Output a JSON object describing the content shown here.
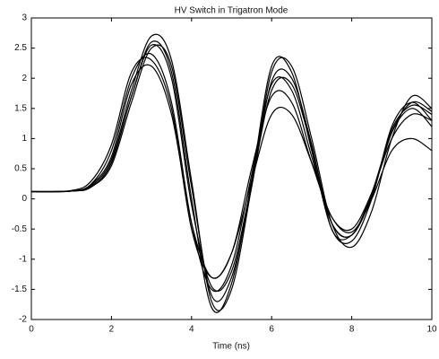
{
  "chart_data": {
    "type": "line",
    "title": "HV Switch in Trigatron Mode",
    "xlabel": "Time (ns)",
    "x": [
      0,
      1,
      1.5,
      2,
      2.5,
      3,
      3.5,
      4,
      4.5,
      5,
      5.5,
      6,
      6.5,
      7,
      7.5,
      8,
      8.5,
      9,
      9.5,
      10
    ],
    "series": [
      {
        "color": "#000000",
        "values": [
          0.12,
          0.13,
          0.22,
          0.65,
          1.8,
          2.7,
          2.3,
          0.3,
          -1.7,
          -1.5,
          0.2,
          2.1,
          2.2,
          1.0,
          -0.4,
          -0.8,
          -0.2,
          1.0,
          1.7,
          1.5
        ]
      },
      {
        "color": "#000000",
        "values": [
          0.12,
          0.13,
          0.2,
          0.6,
          1.7,
          2.6,
          2.1,
          0.0,
          -1.8,
          -1.4,
          0.3,
          2.2,
          2.1,
          0.8,
          -0.5,
          -0.7,
          0.0,
          1.2,
          1.6,
          1.3
        ]
      },
      {
        "color": "#000000",
        "values": [
          0.12,
          0.13,
          0.25,
          0.8,
          2.0,
          2.4,
          1.6,
          -0.4,
          -1.5,
          -1.1,
          0.4,
          1.9,
          1.8,
          0.7,
          -0.4,
          -0.6,
          0.1,
          1.1,
          1.5,
          1.2
        ]
      },
      {
        "color": "#000000",
        "values": [
          0.12,
          0.14,
          0.3,
          0.9,
          2.1,
          2.3,
          1.5,
          -0.5,
          -1.3,
          -0.9,
          0.5,
          1.7,
          1.6,
          0.6,
          -0.3,
          -0.5,
          0.1,
          1.0,
          1.4,
          1.3
        ]
      },
      {
        "color": "#000000",
        "values": [
          0.12,
          0.13,
          0.2,
          0.55,
          1.6,
          2.5,
          2.2,
          0.2,
          -1.6,
          -1.3,
          0.2,
          1.95,
          2.0,
          0.9,
          -0.5,
          -0.6,
          0.05,
          1.15,
          1.55,
          1.4
        ]
      },
      {
        "color": "#000000",
        "values": [
          0.12,
          0.13,
          0.24,
          0.7,
          1.9,
          2.2,
          1.4,
          -0.4,
          -1.3,
          -0.9,
          0.3,
          1.4,
          1.4,
          0.6,
          -0.3,
          -0.55,
          0.0,
          0.8,
          1.0,
          0.8
        ]
      },
      {
        "color": "#000000",
        "values": [
          0.12,
          0.13,
          0.2,
          0.6,
          1.7,
          2.55,
          2.0,
          -0.1,
          -1.45,
          -1.2,
          0.25,
          1.8,
          1.9,
          0.85,
          -0.4,
          -0.6,
          0.05,
          1.1,
          1.6,
          1.45
        ]
      }
    ],
    "xlim": [
      0,
      10
    ],
    "xticks": [
      0,
      2,
      4,
      6,
      8,
      10
    ],
    "ylim": [
      -2,
      3
    ],
    "yticks": [
      -2,
      -1.5,
      -1,
      -0.5,
      0,
      0.5,
      1,
      1.5,
      2,
      2.5,
      3
    ],
    "grid": false
  }
}
